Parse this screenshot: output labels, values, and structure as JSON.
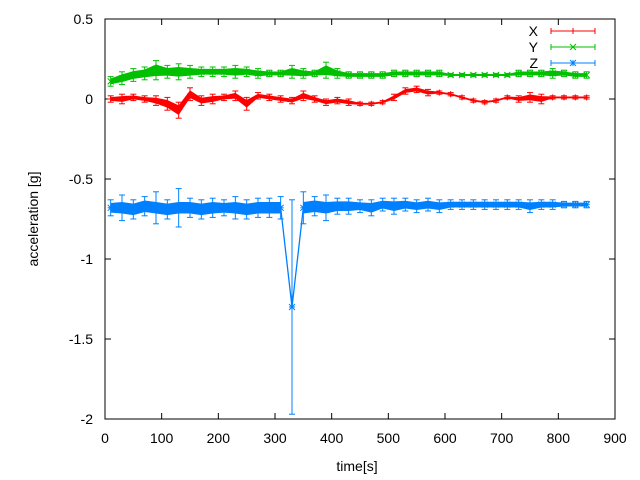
{
  "chart_data": {
    "type": "scatter",
    "title": "",
    "xlabel": "time[s]",
    "ylabel": "acceleration [g]",
    "xlim": [
      0,
      900
    ],
    "ylim": [
      -2,
      0.5
    ],
    "xticks": [
      0,
      100,
      200,
      300,
      400,
      500,
      600,
      700,
      800,
      900
    ],
    "yticks": [
      0.5,
      0,
      -0.5,
      -1,
      -1.5,
      -2
    ],
    "ytick_labels": [
      "0.5",
      "0",
      "-0.5",
      "-1",
      "-1.5",
      "-2"
    ],
    "grid": false,
    "legend_position": "top-right",
    "x": [
      10,
      30,
      50,
      70,
      90,
      110,
      130,
      150,
      170,
      190,
      210,
      230,
      250,
      270,
      290,
      310,
      330,
      350,
      370,
      390,
      410,
      430,
      450,
      470,
      490,
      510,
      530,
      550,
      570,
      590,
      610,
      630,
      650,
      670,
      690,
      710,
      730,
      750,
      770,
      790,
      810,
      830,
      850
    ],
    "series": [
      {
        "name": "X",
        "color": "#ff0000",
        "marker": "plus",
        "y": [
          0.0,
          0.0,
          0.01,
          0.0,
          -0.01,
          -0.03,
          -0.07,
          0.03,
          -0.01,
          0.0,
          0.01,
          0.02,
          -0.03,
          0.02,
          0.01,
          0.0,
          -0.01,
          0.02,
          0.0,
          -0.02,
          -0.01,
          -0.02,
          -0.03,
          -0.03,
          -0.02,
          0.01,
          0.05,
          0.06,
          0.04,
          0.04,
          0.03,
          0.01,
          -0.01,
          -0.02,
          -0.01,
          0.01,
          0.0,
          0.01,
          0.0,
          0.01,
          0.01,
          0.01,
          0.01
        ],
        "err": [
          0.02,
          0.03,
          0.02,
          0.02,
          0.03,
          0.04,
          0.05,
          0.04,
          0.03,
          0.03,
          0.02,
          0.03,
          0.04,
          0.02,
          0.02,
          0.02,
          0.02,
          0.03,
          0.02,
          0.02,
          0.02,
          0.02,
          0.01,
          0.01,
          0.01,
          0.02,
          0.02,
          0.02,
          0.02,
          0.01,
          0.01,
          0.01,
          0.01,
          0.01,
          0.01,
          0.01,
          0.02,
          0.03,
          0.03,
          0.01,
          0.01,
          0.01,
          0.01
        ]
      },
      {
        "name": "Y",
        "color": "#00c000",
        "marker": "cross",
        "y": [
          0.11,
          0.13,
          0.15,
          0.16,
          0.18,
          0.17,
          0.17,
          0.17,
          0.17,
          0.17,
          0.17,
          0.17,
          0.17,
          0.16,
          0.16,
          0.16,
          0.17,
          0.16,
          0.16,
          0.18,
          0.16,
          0.15,
          0.15,
          0.15,
          0.15,
          0.16,
          0.16,
          0.16,
          0.16,
          0.16,
          0.15,
          0.15,
          0.15,
          0.15,
          0.15,
          0.15,
          0.16,
          0.16,
          0.16,
          0.16,
          0.16,
          0.15,
          0.15
        ],
        "err": [
          0.03,
          0.04,
          0.04,
          0.04,
          0.06,
          0.04,
          0.05,
          0.04,
          0.03,
          0.03,
          0.03,
          0.04,
          0.03,
          0.03,
          0.02,
          0.02,
          0.04,
          0.03,
          0.02,
          0.05,
          0.03,
          0.02,
          0.02,
          0.02,
          0.02,
          0.02,
          0.02,
          0.02,
          0.02,
          0.02,
          0.01,
          0.01,
          0.01,
          0.01,
          0.01,
          0.01,
          0.02,
          0.02,
          0.02,
          0.03,
          0.02,
          0.02,
          0.02
        ]
      },
      {
        "name": "Z",
        "color": "#0080ff",
        "marker": "star",
        "y": [
          -0.68,
          -0.68,
          -0.69,
          -0.67,
          -0.68,
          -0.69,
          -0.68,
          -0.68,
          -0.69,
          -0.68,
          -0.68,
          -0.68,
          -0.69,
          -0.68,
          -0.68,
          -0.68,
          -1.3,
          -0.68,
          -0.67,
          -0.68,
          -0.67,
          -0.67,
          -0.67,
          -0.68,
          -0.66,
          -0.67,
          -0.66,
          -0.67,
          -0.66,
          -0.67,
          -0.66,
          -0.66,
          -0.66,
          -0.66,
          -0.66,
          -0.66,
          -0.66,
          -0.67,
          -0.66,
          -0.66,
          -0.66,
          -0.66,
          -0.66
        ],
        "err": [
          0.05,
          0.08,
          0.06,
          0.06,
          0.1,
          0.06,
          0.12,
          0.06,
          0.06,
          0.06,
          0.05,
          0.07,
          0.06,
          0.06,
          0.06,
          0.07,
          0.67,
          0.1,
          0.06,
          0.08,
          0.05,
          0.05,
          0.04,
          0.05,
          0.04,
          0.05,
          0.04,
          0.04,
          0.04,
          0.04,
          0.03,
          0.03,
          0.03,
          0.03,
          0.03,
          0.03,
          0.03,
          0.04,
          0.03,
          0.03,
          0.02,
          0.02,
          0.02
        ]
      }
    ]
  }
}
